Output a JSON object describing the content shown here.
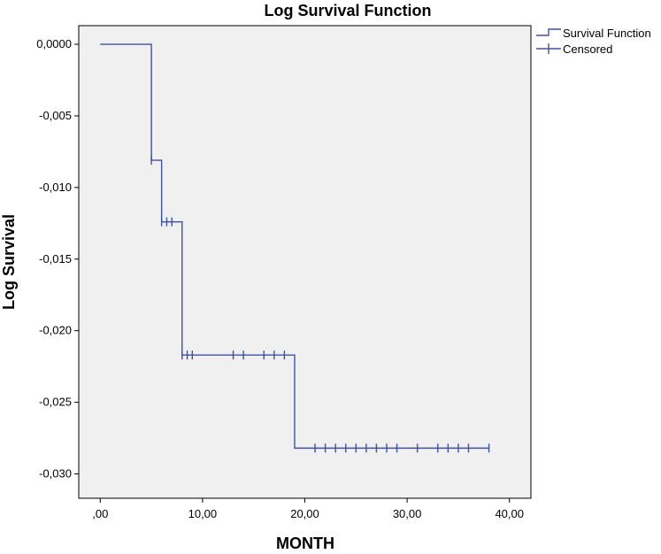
{
  "chart_data": {
    "type": "line",
    "title": "Log Survival Function",
    "xlabel": "MONTH",
    "ylabel": "Log Survival",
    "xlim": [
      -2.1,
      42.1
    ],
    "ylim": [
      -0.0317,
      0.0013
    ],
    "x_ticks": [
      0,
      10,
      20,
      30,
      40
    ],
    "x_tick_labels": [
      ",00",
      "10,00",
      "20,00",
      "30,00",
      "40,00"
    ],
    "y_ticks": [
      0,
      -0.005,
      -0.01,
      -0.015,
      -0.02,
      -0.025,
      -0.03
    ],
    "y_tick_labels": [
      "0,0000",
      "-0,005",
      "-0,010",
      "-0,015",
      "-0,020",
      "-0,025",
      "-0,030"
    ],
    "grid": false,
    "legend_position": "top-right",
    "series": [
      {
        "name": "Survival Function",
        "color": "#3f52a0",
        "steps": [
          [
            0,
            0
          ],
          [
            5,
            -0.0081
          ],
          [
            6,
            -0.0124
          ],
          [
            8,
            -0.0217
          ],
          [
            19,
            -0.0282
          ],
          [
            38,
            -0.0282
          ]
        ]
      },
      {
        "name": "Censored",
        "color": "#3f52a0",
        "points": [
          [
            5,
            -0.0081
          ],
          [
            6,
            -0.0124
          ],
          [
            6.5,
            -0.0124
          ],
          [
            7,
            -0.0124
          ],
          [
            8,
            -0.0217
          ],
          [
            8.5,
            -0.0217
          ],
          [
            9,
            -0.0217
          ],
          [
            13,
            -0.0217
          ],
          [
            14,
            -0.0217
          ],
          [
            16,
            -0.0217
          ],
          [
            17,
            -0.0217
          ],
          [
            18,
            -0.0217
          ],
          [
            21,
            -0.0282
          ],
          [
            22,
            -0.0282
          ],
          [
            23,
            -0.0282
          ],
          [
            24,
            -0.0282
          ],
          [
            25,
            -0.0282
          ],
          [
            26,
            -0.0282
          ],
          [
            27,
            -0.0282
          ],
          [
            28,
            -0.0282
          ],
          [
            29,
            -0.0282
          ],
          [
            31,
            -0.0282
          ],
          [
            33,
            -0.0282
          ],
          [
            34,
            -0.0282
          ],
          [
            35,
            -0.0282
          ],
          [
            36,
            -0.0282
          ],
          [
            38,
            -0.0282
          ]
        ]
      }
    ]
  }
}
